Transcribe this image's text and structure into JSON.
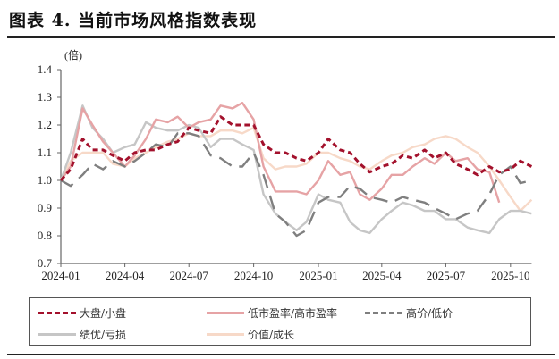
{
  "title": "图表 4. 当前市场风格指数表现",
  "chart_data": {
    "type": "line",
    "unit_label": "(倍)",
    "ylim": [
      0.7,
      1.4
    ],
    "yticks": [
      "0.7",
      "0.8",
      "0.9",
      "1.0",
      "1.1",
      "1.2",
      "1.3",
      "1.4"
    ],
    "xticks": [
      "2024-01",
      "2024-04",
      "2024-07",
      "2024-10",
      "2025-01",
      "2025-04",
      "2025-07",
      "2025-10"
    ],
    "grid": false,
    "legend_position": "bottom",
    "x": [
      "2024-01-01",
      "2024-01-15",
      "2024-02-01",
      "2024-02-15",
      "2024-03-01",
      "2024-03-15",
      "2024-04-01",
      "2024-04-15",
      "2024-05-01",
      "2024-05-15",
      "2024-06-01",
      "2024-06-15",
      "2024-07-01",
      "2024-07-15",
      "2024-08-01",
      "2024-08-15",
      "2024-09-01",
      "2024-09-15",
      "2024-10-01",
      "2024-10-15",
      "2024-11-01",
      "2024-11-15",
      "2024-12-01",
      "2024-12-15",
      "2025-01-01",
      "2025-01-15",
      "2025-02-01",
      "2025-02-15",
      "2025-03-01",
      "2025-03-15",
      "2025-04-01",
      "2025-04-15",
      "2025-05-01",
      "2025-05-15",
      "2025-06-01",
      "2025-06-15",
      "2025-07-01",
      "2025-07-15",
      "2025-08-01",
      "2025-08-15",
      "2025-09-01",
      "2025-09-15",
      "2025-10-01",
      "2025-10-15",
      "2025-10-31"
    ],
    "series": [
      {
        "name": "大盘/小盘",
        "color": "#a3112c",
        "style": "dashed",
        "values": [
          1.0,
          1.04,
          1.15,
          1.11,
          1.11,
          1.09,
          1.07,
          1.1,
          1.11,
          1.11,
          1.13,
          1.14,
          1.19,
          1.18,
          1.17,
          1.23,
          1.2,
          1.2,
          1.2,
          1.13,
          1.1,
          1.1,
          1.08,
          1.07,
          1.1,
          1.15,
          1.11,
          1.1,
          1.06,
          1.03,
          1.05,
          1.06,
          1.09,
          1.08,
          1.11,
          1.08,
          1.1,
          1.06,
          1.04,
          1.02,
          1.05,
          1.03,
          1.04,
          1.07,
          1.05
        ]
      },
      {
        "name": "低市盈率/高市盈率",
        "color": "#e6a3a5",
        "style": "solid",
        "values": [
          1.0,
          1.05,
          1.26,
          1.2,
          1.14,
          1.1,
          1.05,
          1.09,
          1.15,
          1.22,
          1.21,
          1.23,
          1.19,
          1.21,
          1.22,
          1.27,
          1.26,
          1.28,
          1.22,
          1.05,
          0.96,
          0.96,
          0.96,
          0.95,
          1.0,
          1.07,
          1.02,
          1.03,
          0.95,
          0.93,
          0.97,
          1.02,
          1.02,
          1.05,
          1.08,
          1.06,
          1.1,
          1.07,
          1.08,
          1.04,
          1.03,
          0.92,
          null,
          null,
          null
        ]
      },
      {
        "name": "高价/低价",
        "color": "#7f7f7f",
        "style": "longdash",
        "values": [
          1.0,
          0.98,
          1.02,
          1.06,
          1.04,
          1.07,
          1.05,
          1.07,
          1.1,
          1.13,
          1.12,
          1.17,
          1.17,
          1.16,
          1.09,
          1.08,
          1.05,
          1.05,
          1.1,
          1.02,
          0.88,
          0.85,
          0.8,
          0.82,
          0.92,
          0.94,
          0.94,
          0.98,
          0.97,
          0.94,
          0.93,
          0.92,
          0.94,
          0.93,
          0.92,
          0.9,
          0.88,
          0.86,
          0.88,
          0.89,
          0.95,
          1.02,
          1.05,
          0.99,
          1.0
        ]
      },
      {
        "name": "绩优/亏损",
        "color": "#c6c6c6",
        "style": "solid",
        "values": [
          1.0,
          1.1,
          1.27,
          1.19,
          1.15,
          1.1,
          1.12,
          1.13,
          1.21,
          1.19,
          1.18,
          1.18,
          1.2,
          1.19,
          1.12,
          1.15,
          1.15,
          1.13,
          1.11,
          0.95,
          0.88,
          0.85,
          0.82,
          0.85,
          0.95,
          0.93,
          0.92,
          0.85,
          0.82,
          0.81,
          0.86,
          0.89,
          0.92,
          0.91,
          0.89,
          0.89,
          0.86,
          0.86,
          0.83,
          0.82,
          0.81,
          0.86,
          0.89,
          0.89,
          0.88
        ]
      },
      {
        "name": "价值/成长",
        "color": "#f7d9c8",
        "style": "solid",
        "values": [
          1.0,
          1.07,
          1.1,
          1.1,
          1.1,
          1.06,
          1.05,
          1.08,
          1.1,
          1.12,
          1.14,
          1.15,
          1.17,
          1.16,
          1.16,
          1.18,
          1.18,
          1.17,
          1.19,
          1.08,
          1.04,
          1.05,
          1.05,
          1.06,
          1.1,
          1.1,
          1.08,
          1.07,
          1.05,
          1.04,
          1.07,
          1.09,
          1.1,
          1.12,
          1.13,
          1.15,
          1.16,
          1.15,
          1.12,
          1.1,
          1.05,
          1.0,
          0.94,
          0.89,
          0.93
        ]
      }
    ]
  }
}
